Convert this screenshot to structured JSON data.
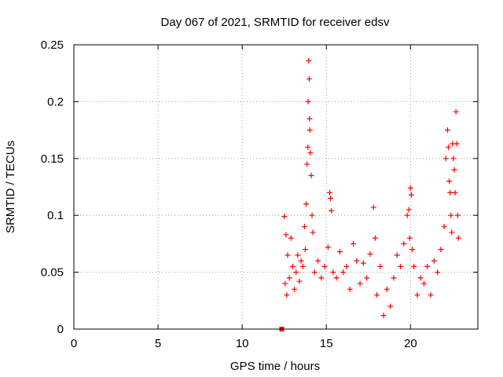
{
  "page": {
    "background": "#ffffff"
  },
  "chart_data": {
    "type": "scatter",
    "title": "Day 067 of 2021, SRMTID for receiver edsv",
    "xlabel": "GPS time / hours",
    "ylabel": "SRMTID / TECUs",
    "xlim": [
      0,
      24
    ],
    "ylim": [
      0,
      0.25
    ],
    "xticks": [
      0,
      5,
      10,
      15,
      20
    ],
    "xtick_labels": [
      "0",
      "5",
      "10",
      "15",
      "20"
    ],
    "yticks": [
      0,
      0.05,
      0.1,
      0.15,
      0.2,
      0.25
    ],
    "ytick_labels": [
      "0",
      "0.05",
      "0.1",
      "0.15",
      "0.2",
      "0.25"
    ],
    "grid": true,
    "marker": "plus",
    "color": "#ff0000",
    "square_marker": {
      "x": 12.35,
      "y": 0.0
    },
    "series": [
      {
        "name": "SRMTID",
        "x": [
          12.5,
          12.55,
          12.6,
          12.65,
          12.7,
          12.8,
          12.9,
          13.0,
          13.1,
          13.2,
          13.3,
          13.4,
          13.5,
          13.6,
          13.7,
          13.75,
          13.8,
          13.85,
          13.9,
          13.92,
          13.95,
          13.98,
          14.0,
          14.02,
          14.05,
          14.1,
          14.15,
          14.2,
          14.3,
          14.5,
          14.7,
          14.9,
          15.1,
          15.2,
          15.25,
          15.3,
          15.4,
          15.6,
          15.8,
          16.0,
          16.2,
          16.4,
          16.6,
          16.8,
          17.0,
          17.2,
          17.4,
          17.6,
          17.8,
          17.9,
          18.0,
          18.2,
          18.4,
          18.6,
          18.8,
          19.0,
          19.2,
          19.4,
          19.6,
          19.8,
          19.9,
          19.95,
          20.0,
          20.05,
          20.1,
          20.2,
          20.4,
          20.6,
          20.8,
          21.0,
          21.2,
          21.4,
          21.6,
          21.8,
          22.0,
          22.1,
          22.2,
          22.25,
          22.3,
          22.35,
          22.4,
          22.45,
          22.5,
          22.55,
          22.6,
          22.65,
          22.7,
          22.75,
          22.8,
          22.85
        ],
        "y": [
          0.099,
          0.04,
          0.083,
          0.03,
          0.065,
          0.045,
          0.08,
          0.055,
          0.035,
          0.05,
          0.065,
          0.042,
          0.06,
          0.055,
          0.09,
          0.07,
          0.11,
          0.145,
          0.16,
          0.2,
          0.236,
          0.22,
          0.185,
          0.175,
          0.155,
          0.135,
          0.1,
          0.085,
          0.05,
          0.06,
          0.045,
          0.055,
          0.072,
          0.12,
          0.115,
          0.104,
          0.05,
          0.045,
          0.068,
          0.05,
          0.055,
          0.035,
          0.075,
          0.06,
          0.04,
          0.058,
          0.045,
          0.066,
          0.107,
          0.08,
          0.03,
          0.055,
          0.012,
          0.035,
          0.02,
          0.045,
          0.065,
          0.055,
          0.075,
          0.1,
          0.105,
          0.08,
          0.124,
          0.118,
          0.07,
          0.055,
          0.03,
          0.045,
          0.04,
          0.055,
          0.03,
          0.06,
          0.05,
          0.07,
          0.09,
          0.15,
          0.175,
          0.16,
          0.13,
          0.12,
          0.1,
          0.085,
          0.163,
          0.15,
          0.14,
          0.12,
          0.191,
          0.163,
          0.1,
          0.08
        ]
      }
    ]
  }
}
